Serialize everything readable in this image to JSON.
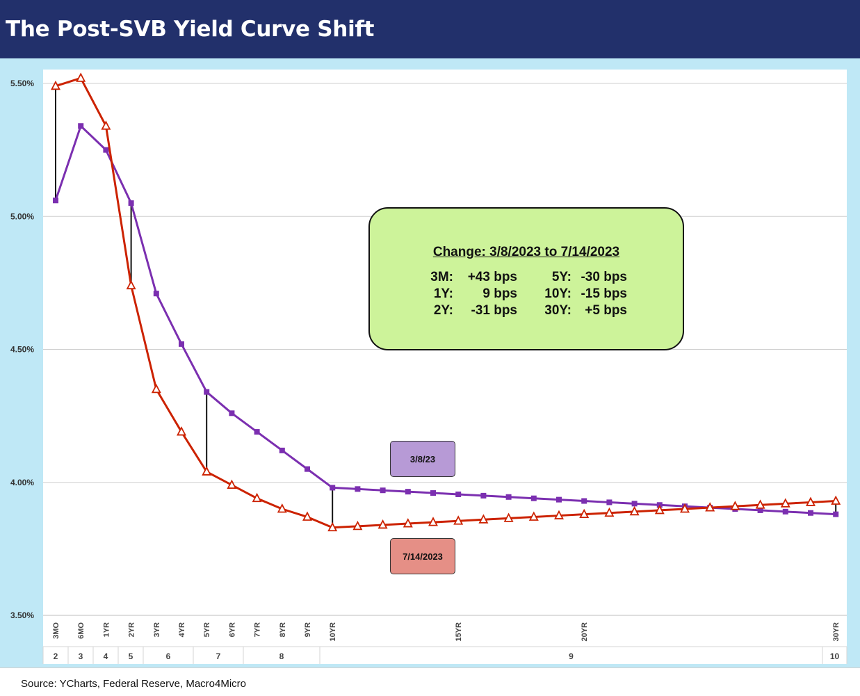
{
  "header": {
    "title": "The Post-SVB Yield Curve Shift"
  },
  "footer": {
    "source": "Source: YCharts, Federal Reserve, Macro4Micro"
  },
  "info_box": {
    "title": "Change: 3/8/2023 to 7/14/2023",
    "rows": [
      {
        "l1": "3M:",
        "v1": "+43 bps",
        "l2": "5Y:",
        "v2": "-30 bps"
      },
      {
        "l1": "1Y:",
        "v1": "9 bps",
        "l2": "10Y:",
        "v2": "-15 bps"
      },
      {
        "l1": "2Y:",
        "v1": "-31 bps",
        "l2": "30Y:",
        "v2": "+5 bps"
      }
    ]
  },
  "chart_data": {
    "type": "line",
    "title": "",
    "xlabel": "",
    "ylabel": "",
    "ylim": [
      3.5,
      5.5
    ],
    "y_ticks": [
      "3.50%",
      "4.00%",
      "4.50%",
      "5.00%",
      "5.50%"
    ],
    "y_tick_values": [
      3.5,
      4.0,
      4.5,
      5.0,
      5.5
    ],
    "grid": true,
    "x_positions": [
      0.25,
      0.5,
      1,
      2,
      3,
      4,
      5,
      6,
      7,
      8,
      9,
      10,
      11,
      12,
      13,
      14,
      15,
      16,
      17,
      18,
      19,
      20,
      21,
      22,
      23,
      24,
      25,
      26,
      27,
      28,
      29,
      30
    ],
    "x_tick_labels": [
      "3MO",
      "6MO",
      "1YR",
      "2YR",
      "3YR",
      "4YR",
      "5YR",
      "6YR",
      "7YR",
      "8YR",
      "9YR",
      "10YR",
      "",
      "",
      "",
      "",
      "15YR",
      "",
      "",
      "",
      "",
      "20YR",
      "",
      "",
      "",
      "",
      "",
      "",
      "",
      "",
      "",
      "30YR"
    ],
    "group_labels": [
      "2",
      "3",
      "4",
      "5",
      "6",
      "7",
      "8",
      "9",
      "10"
    ],
    "series": [
      {
        "name": "3/8/23",
        "color": "#7b2fb0",
        "marker": "square",
        "values": [
          5.06,
          5.34,
          5.25,
          5.05,
          4.71,
          4.52,
          4.34,
          4.26,
          4.19,
          4.12,
          4.05,
          3.98,
          3.975,
          3.97,
          3.965,
          3.96,
          3.955,
          3.95,
          3.945,
          3.94,
          3.935,
          3.93,
          3.925,
          3.92,
          3.915,
          3.91,
          3.905,
          3.9,
          3.895,
          3.89,
          3.885,
          3.88
        ]
      },
      {
        "name": "7/14/2023",
        "color": "#cc2200",
        "marker": "triangle",
        "values": [
          5.49,
          5.52,
          5.34,
          4.74,
          4.35,
          4.19,
          4.04,
          3.99,
          3.94,
          3.9,
          3.87,
          3.83,
          3.835,
          3.84,
          3.845,
          3.85,
          3.855,
          3.86,
          3.865,
          3.87,
          3.875,
          3.88,
          3.885,
          3.89,
          3.895,
          3.9,
          3.905,
          3.91,
          3.915,
          3.92,
          3.925,
          3.93
        ]
      }
    ],
    "change_markers_at": [
      "3MO",
      "2YR",
      "5YR",
      "10YR",
      "30YR"
    ]
  }
}
